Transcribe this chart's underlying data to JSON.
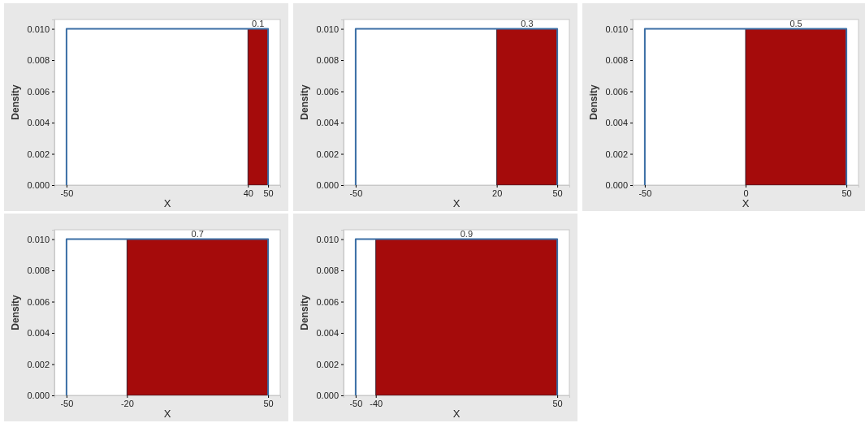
{
  "chart_data": [
    {
      "type": "area",
      "xlabel": "X",
      "ylabel": "Density",
      "xlim": [
        -56,
        56
      ],
      "ylim": [
        0,
        0.0106
      ],
      "xticks": [
        -50,
        40,
        50
      ],
      "yticks": [
        {
          "value": 0,
          "label": "0.000"
        },
        {
          "value": 0.002,
          "label": "0.002"
        },
        {
          "value": 0.004,
          "label": "0.004"
        },
        {
          "value": 0.006,
          "label": "0.006"
        },
        {
          "value": 0.008,
          "label": "0.008"
        },
        {
          "value": 0.01,
          "label": "0.010"
        }
      ],
      "grid": false,
      "series": [
        {
          "type": "area",
          "color": "#a50b0b",
          "x": [
            40,
            50
          ],
          "values": [
            0.01,
            0.01
          ]
        },
        {
          "type": "line",
          "color": "#3a6ea5",
          "x": [
            -50,
            -50,
            50,
            50
          ],
          "values": [
            0,
            0.01,
            0.01,
            0
          ]
        }
      ],
      "annotations": [
        {
          "text": "0.1",
          "x": 45,
          "y": 0.01
        }
      ]
    },
    {
      "type": "area",
      "xlabel": "X",
      "ylabel": "Density",
      "xlim": [
        -56,
        56
      ],
      "ylim": [
        0,
        0.0106
      ],
      "xticks": [
        -50,
        20,
        50
      ],
      "yticks": [
        {
          "value": 0,
          "label": "0.000"
        },
        {
          "value": 0.002,
          "label": "0.002"
        },
        {
          "value": 0.004,
          "label": "0.004"
        },
        {
          "value": 0.006,
          "label": "0.006"
        },
        {
          "value": 0.008,
          "label": "0.008"
        },
        {
          "value": 0.01,
          "label": "0.010"
        }
      ],
      "grid": false,
      "series": [
        {
          "type": "area",
          "color": "#a50b0b",
          "x": [
            20,
            50
          ],
          "values": [
            0.01,
            0.01
          ]
        },
        {
          "type": "line",
          "color": "#3a6ea5",
          "x": [
            -50,
            -50,
            50,
            50
          ],
          "values": [
            0,
            0.01,
            0.01,
            0
          ]
        }
      ],
      "annotations": [
        {
          "text": "0.3",
          "x": 35,
          "y": 0.01
        }
      ]
    },
    {
      "type": "area",
      "xlabel": "X",
      "ylabel": "Density",
      "xlim": [
        -56,
        56
      ],
      "ylim": [
        0,
        0.0106
      ],
      "xticks": [
        -50,
        0,
        50
      ],
      "yticks": [
        {
          "value": 0,
          "label": "0.000"
        },
        {
          "value": 0.002,
          "label": "0.002"
        },
        {
          "value": 0.004,
          "label": "0.004"
        },
        {
          "value": 0.006,
          "label": "0.006"
        },
        {
          "value": 0.008,
          "label": "0.008"
        },
        {
          "value": 0.01,
          "label": "0.010"
        }
      ],
      "grid": false,
      "series": [
        {
          "type": "area",
          "color": "#a50b0b",
          "x": [
            0,
            50
          ],
          "values": [
            0.01,
            0.01
          ]
        },
        {
          "type": "line",
          "color": "#3a6ea5",
          "x": [
            -50,
            -50,
            50,
            50
          ],
          "values": [
            0,
            0.01,
            0.01,
            0
          ]
        }
      ],
      "annotations": [
        {
          "text": "0.5",
          "x": 25,
          "y": 0.01
        }
      ]
    },
    {
      "type": "area",
      "xlabel": "X",
      "ylabel": "Density",
      "xlim": [
        -56,
        56
      ],
      "ylim": [
        0,
        0.0106
      ],
      "xticks": [
        -50,
        -20,
        50
      ],
      "yticks": [
        {
          "value": 0,
          "label": "0.000"
        },
        {
          "value": 0.002,
          "label": "0.002"
        },
        {
          "value": 0.004,
          "label": "0.004"
        },
        {
          "value": 0.006,
          "label": "0.006"
        },
        {
          "value": 0.008,
          "label": "0.008"
        },
        {
          "value": 0.01,
          "label": "0.010"
        }
      ],
      "grid": false,
      "series": [
        {
          "type": "area",
          "color": "#a50b0b",
          "x": [
            -20,
            50
          ],
          "values": [
            0.01,
            0.01
          ]
        },
        {
          "type": "line",
          "color": "#3a6ea5",
          "x": [
            -50,
            -50,
            50,
            50
          ],
          "values": [
            0,
            0.01,
            0.01,
            0
          ]
        }
      ],
      "annotations": [
        {
          "text": "0.7",
          "x": 15,
          "y": 0.01
        }
      ]
    },
    {
      "type": "area",
      "xlabel": "X",
      "ylabel": "Density",
      "xlim": [
        -56,
        56
      ],
      "ylim": [
        0,
        0.0106
      ],
      "xticks": [
        -50,
        -40,
        50
      ],
      "yticks": [
        {
          "value": 0,
          "label": "0.000"
        },
        {
          "value": 0.002,
          "label": "0.002"
        },
        {
          "value": 0.004,
          "label": "0.004"
        },
        {
          "value": 0.006,
          "label": "0.006"
        },
        {
          "value": 0.008,
          "label": "0.008"
        },
        {
          "value": 0.01,
          "label": "0.010"
        }
      ],
      "grid": false,
      "series": [
        {
          "type": "area",
          "color": "#a50b0b",
          "x": [
            -40,
            50
          ],
          "values": [
            0.01,
            0.01
          ]
        },
        {
          "type": "line",
          "color": "#3a6ea5",
          "x": [
            -50,
            -50,
            50,
            50
          ],
          "values": [
            0,
            0.01,
            0.01,
            0
          ]
        }
      ],
      "annotations": [
        {
          "text": "0.9",
          "x": 5,
          "y": 0.01
        }
      ]
    }
  ]
}
